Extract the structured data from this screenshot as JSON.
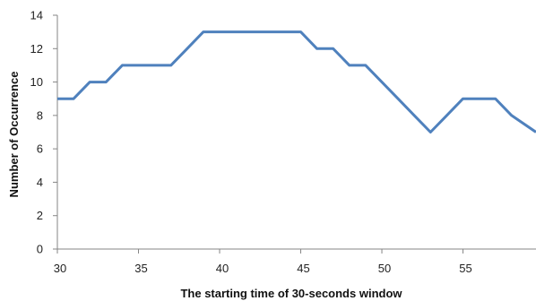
{
  "chart_data": {
    "type": "line",
    "title": "",
    "xlabel": "The starting time of 30-seconds window",
    "ylabel": "Number  of Occurrence",
    "xlim": [
      30,
      59.5
    ],
    "ylim": [
      0,
      14
    ],
    "x_ticks": [
      30,
      35,
      40,
      45,
      50,
      55
    ],
    "y_ticks": [
      0,
      2,
      4,
      6,
      8,
      10,
      12,
      14
    ],
    "grid": false,
    "legend": "none",
    "line_color": "#4f81bd",
    "series": [
      {
        "x": [
          30,
          31,
          32,
          33,
          34,
          35,
          36,
          37,
          38,
          39,
          40,
          41,
          42,
          43,
          44,
          45,
          46,
          47,
          48,
          49,
          50,
          51,
          52,
          53,
          54,
          55,
          56,
          57,
          58,
          59.5
        ],
        "values": [
          9,
          9,
          10,
          10,
          11,
          11,
          11,
          11,
          12,
          13,
          13,
          13,
          13,
          13,
          13,
          13,
          12,
          12,
          11,
          11,
          10,
          9,
          8,
          7,
          8,
          9,
          9,
          9,
          8,
          7
        ]
      }
    ]
  }
}
